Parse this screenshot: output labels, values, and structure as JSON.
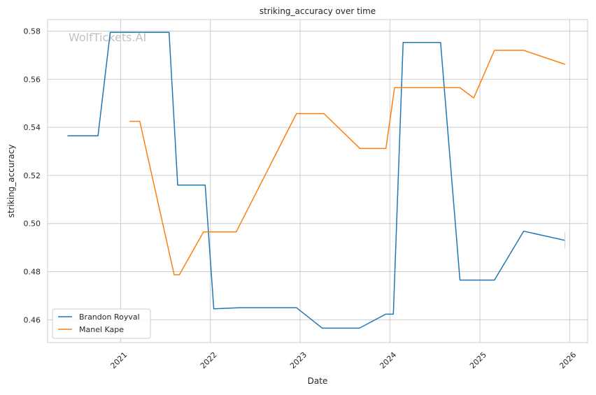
{
  "chart_data": {
    "type": "line",
    "title": "striking_accuracy over time",
    "xlabel": "Date",
    "ylabel": "striking_accuracy",
    "watermark": "WolfTickets.AI",
    "x_ticks": [
      "2021",
      "2022",
      "2023",
      "2024",
      "2025",
      "2026"
    ],
    "y_ticks": [
      "0.46",
      "0.48",
      "0.50",
      "0.52",
      "0.54",
      "0.56",
      "0.58"
    ],
    "xlim": [
      "2020-03-10",
      "2026-03-15"
    ],
    "ylim": [
      0.4505,
      0.5848
    ],
    "grid": true,
    "legend_position": "lower-left",
    "series": [
      {
        "name": "Brandon Royval",
        "color": "#1f77b4",
        "points": [
          [
            "2020-05-30",
            0.5365
          ],
          [
            "2020-10-01",
            0.5365
          ],
          [
            "2020-11-20",
            0.5795
          ],
          [
            "2021-07-17",
            0.5795
          ],
          [
            "2021-08-21",
            0.516
          ],
          [
            "2021-12-11",
            0.516
          ],
          [
            "2022-01-15",
            0.4645
          ],
          [
            "2022-05-01",
            0.465
          ],
          [
            "2022-12-17",
            0.465
          ],
          [
            "2023-04-01",
            0.4565
          ],
          [
            "2023-08-30",
            0.4565
          ],
          [
            "2023-12-15",
            0.4623
          ],
          [
            "2024-01-15",
            0.4623
          ],
          [
            "2024-02-24",
            0.5753
          ],
          [
            "2024-07-25",
            0.5753
          ],
          [
            "2024-10-12",
            0.4765
          ],
          [
            "2025-03-01",
            0.4765
          ],
          [
            "2025-06-28",
            0.4968
          ],
          [
            "2025-12-13",
            0.493
          ]
        ]
      },
      {
        "name": "Manel Kape",
        "color": "#ff7f0e",
        "points": [
          [
            "2021-02-06",
            0.5425
          ],
          [
            "2021-03-20",
            0.5425
          ],
          [
            "2021-08-07",
            0.4787
          ],
          [
            "2021-08-28",
            0.4787
          ],
          [
            "2021-12-04",
            0.4965
          ],
          [
            "2022-04-16",
            0.4965
          ],
          [
            "2022-12-17",
            0.5457
          ],
          [
            "2023-04-08",
            0.5457
          ],
          [
            "2023-09-01",
            0.5312
          ],
          [
            "2023-12-16",
            0.5312
          ],
          [
            "2024-01-20",
            0.5565
          ],
          [
            "2024-10-12",
            0.5565
          ],
          [
            "2024-12-07",
            0.5522
          ],
          [
            "2025-03-01",
            0.572
          ],
          [
            "2025-06-28",
            0.572
          ],
          [
            "2025-12-13",
            0.5662
          ]
        ]
      }
    ]
  }
}
